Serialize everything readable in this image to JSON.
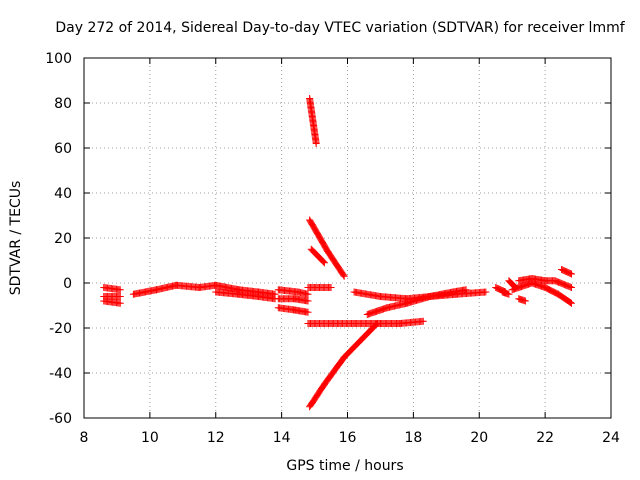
{
  "chart_data": {
    "type": "scatter",
    "title": "Day 272 of 2014, Sidereal Day-to-day VTEC variation (SDTVAR) for receiver lmmf",
    "xlabel": "GPS time / hours",
    "ylabel": "SDTVAR / TECUs",
    "xlim": [
      8,
      24
    ],
    "ylim": [
      -60,
      100
    ],
    "x_ticks": [
      8,
      10,
      12,
      14,
      16,
      18,
      20,
      22,
      24
    ],
    "y_ticks": [
      -60,
      -40,
      -20,
      0,
      20,
      40,
      60,
      80,
      100
    ],
    "grid": true,
    "marker": "plus",
    "color": "#ff0000",
    "series": [
      {
        "segments": [
          [
            [
              8.6,
              -2
            ],
            [
              9.1,
              -3
            ]
          ],
          [
            [
              8.6,
              -6
            ],
            [
              9.1,
              -6
            ]
          ],
          [
            [
              8.6,
              -8
            ],
            [
              9.1,
              -9
            ]
          ],
          [
            [
              9.5,
              -5
            ],
            [
              10.2,
              -3
            ],
            [
              10.8,
              -1
            ],
            [
              11.5,
              -2
            ],
            [
              12.0,
              -1
            ],
            [
              12.7,
              -3
            ],
            [
              13.3,
              -4
            ],
            [
              13.8,
              -5
            ]
          ],
          [
            [
              12.0,
              -4
            ],
            [
              12.7,
              -5
            ],
            [
              13.3,
              -6
            ],
            [
              13.8,
              -7
            ]
          ],
          [
            [
              13.9,
              -3
            ],
            [
              14.5,
              -4
            ],
            [
              14.8,
              -5
            ]
          ],
          [
            [
              13.9,
              -7
            ],
            [
              14.4,
              -7
            ],
            [
              14.8,
              -8
            ]
          ],
          [
            [
              13.9,
              -11
            ],
            [
              14.4,
              -12
            ],
            [
              14.8,
              -13
            ]
          ],
          [
            [
              14.8,
              -2
            ],
            [
              15.5,
              -2
            ]
          ],
          [
            [
              14.8,
              -18
            ],
            [
              15.5,
              -18
            ],
            [
              16.2,
              -18
            ],
            [
              17.0,
              -18
            ],
            [
              17.6,
              -18
            ],
            [
              18.3,
              -17
            ]
          ],
          [
            [
              14.85,
              82
            ],
            [
              15.05,
              62
            ]
          ],
          [
            [
              14.85,
              28
            ],
            [
              15.4,
              14
            ],
            [
              15.9,
              3
            ]
          ],
          [
            [
              14.9,
              15
            ],
            [
              15.3,
              9
            ]
          ],
          [
            [
              14.85,
              -55
            ],
            [
              15.3,
              -45
            ],
            [
              15.9,
              -33
            ],
            [
              16.5,
              -24
            ],
            [
              16.9,
              -18
            ]
          ],
          [
            [
              16.2,
              -4
            ],
            [
              17.0,
              -6
            ],
            [
              17.8,
              -7
            ],
            [
              18.5,
              -6
            ],
            [
              19.2,
              -4
            ],
            [
              19.6,
              -3
            ]
          ],
          [
            [
              16.6,
              -14
            ],
            [
              17.2,
              -11
            ],
            [
              17.8,
              -9
            ],
            [
              18.5,
              -6
            ],
            [
              19.3,
              -5
            ],
            [
              20.2,
              -4
            ]
          ],
          [
            [
              20.5,
              -2
            ],
            [
              20.8,
              -4
            ]
          ],
          [
            [
              20.7,
              -4
            ],
            [
              20.9,
              -5
            ]
          ],
          [
            [
              21.2,
              -7
            ],
            [
              21.4,
              -8
            ]
          ],
          [
            [
              20.9,
              1
            ],
            [
              21.1,
              -2
            ]
          ],
          [
            [
              21.2,
              1
            ],
            [
              21.6,
              2
            ],
            [
              22.0,
              1
            ],
            [
              22.3,
              1
            ],
            [
              22.8,
              -2
            ]
          ],
          [
            [
              21.0,
              -3
            ],
            [
              21.6,
              0
            ],
            [
              22.0,
              -2
            ],
            [
              22.4,
              -5
            ],
            [
              22.8,
              -9
            ]
          ],
          [
            [
              22.5,
              6
            ],
            [
              22.8,
              4
            ]
          ]
        ]
      }
    ]
  }
}
